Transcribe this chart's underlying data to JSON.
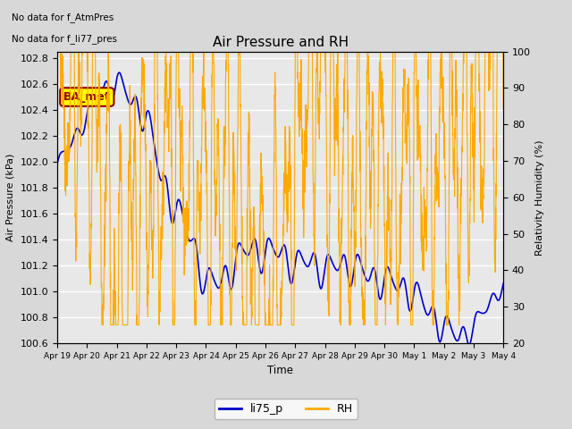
{
  "title": "Air Pressure and RH",
  "text_top_left": [
    "No data for f_AtmPres",
    "No data for f_li77_pres"
  ],
  "ba_met_label": "BA_met",
  "xlabel": "Time",
  "ylabel_left": "Air Pressure (kPa)",
  "ylabel_right": "Relativity Humidity (%)",
  "ylim_left": [
    100.6,
    102.85
  ],
  "ylim_right": [
    20,
    100
  ],
  "yticks_left": [
    100.6,
    100.8,
    101.0,
    101.2,
    101.4,
    101.6,
    101.8,
    102.0,
    102.2,
    102.4,
    102.6,
    102.8
  ],
  "yticks_right": [
    20,
    30,
    40,
    50,
    60,
    70,
    80,
    90,
    100
  ],
  "xtick_labels": [
    "Apr 19",
    "Apr 20",
    "Apr 21",
    "Apr 22",
    "Apr 23",
    "Apr 24",
    "Apr 25",
    "Apr 26",
    "Apr 27",
    "Apr 28",
    "Apr 29",
    "Apr 30",
    "May 1",
    "May 2",
    "May 3",
    "May 4"
  ],
  "bg_color": "#d8d8d8",
  "plot_bg_color": "#e8e8e8",
  "grid_color": "#ffffff",
  "blue_color": "#0000cc",
  "orange_color": "#ffaa00",
  "legend_entries": [
    "li75_p",
    "RH"
  ],
  "legend_colors": [
    "#0000cc",
    "#ffaa00"
  ],
  "n_days": 16,
  "figsize": [
    6.4,
    4.8
  ],
  "dpi": 100
}
